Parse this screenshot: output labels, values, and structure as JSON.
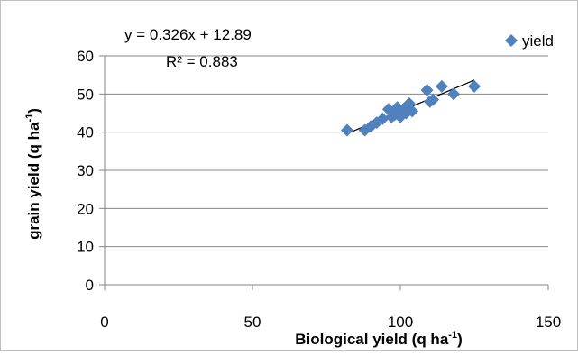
{
  "chart_data": {
    "type": "scatter",
    "xlabel": "Biological yield (q ha",
    "xlabel_sup": "-1",
    "xlabel_end": ")",
    "ylabel": "grain  yield (q ha",
    "ylabel_sup": "-1",
    "ylabel_end": ")",
    "xlim": [
      0,
      150
    ],
    "ylim": [
      0,
      60
    ],
    "x_ticks": [
      0,
      50,
      100,
      150
    ],
    "y_ticks": [
      0,
      10,
      20,
      30,
      40,
      50,
      60
    ],
    "x_tick_labels": [
      "0",
      "50",
      "100",
      "150"
    ],
    "y_tick_labels": [
      "0",
      "10",
      "20",
      "30",
      "40",
      "50",
      "60"
    ],
    "grid": "horizontal",
    "legend_position": "top-right",
    "series": [
      {
        "name": "yield",
        "color": "#4f81bd",
        "marker": "diamond",
        "points": [
          {
            "x": 82,
            "y": 40.5
          },
          {
            "x": 88,
            "y": 40.5
          },
          {
            "x": 90,
            "y": 41.5
          },
          {
            "x": 92,
            "y": 42.5
          },
          {
            "x": 94,
            "y": 43.5
          },
          {
            "x": 96,
            "y": 46
          },
          {
            "x": 97,
            "y": 44
          },
          {
            "x": 98,
            "y": 44.5
          },
          {
            "x": 99,
            "y": 46.5
          },
          {
            "x": 100,
            "y": 44
          },
          {
            "x": 101,
            "y": 46
          },
          {
            "x": 102,
            "y": 45
          },
          {
            "x": 103,
            "y": 47.5
          },
          {
            "x": 104,
            "y": 45.5
          },
          {
            "x": 109,
            "y": 51
          },
          {
            "x": 110,
            "y": 48
          },
          {
            "x": 111,
            "y": 48.5
          },
          {
            "x": 114,
            "y": 52
          },
          {
            "x": 118,
            "y": 50
          },
          {
            "x": 125,
            "y": 52
          }
        ]
      }
    ],
    "trendline": {
      "slope": 0.326,
      "intercept": 12.89,
      "x_range": [
        82,
        125
      ],
      "color": "#000000",
      "equation_label": "y = 0.326x + 12.89",
      "r2_label": "R² = 0.883"
    }
  }
}
